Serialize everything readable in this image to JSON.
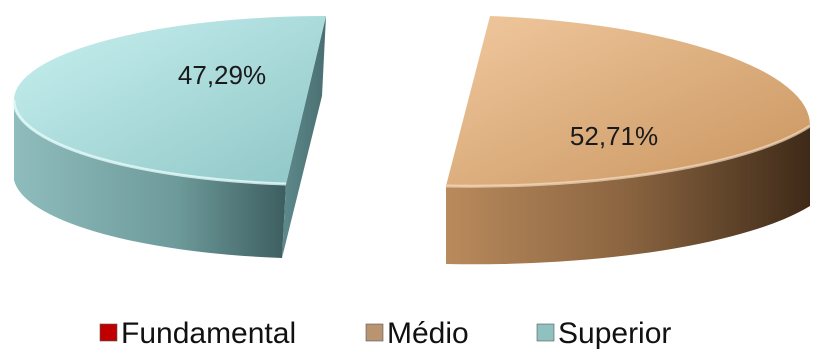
{
  "chart_data": {
    "type": "pie",
    "style": "3d-exploded",
    "slices": [
      {
        "name": "Fundamental",
        "value": 0.0,
        "color": "#c00000"
      },
      {
        "name": "Médio",
        "value": 52.71,
        "label": "52,71%",
        "color": "#d9ab80"
      },
      {
        "name": "Superior",
        "value": 47.29,
        "label": "47,29%",
        "color": "#a9d9d9"
      }
    ],
    "legend": {
      "placement": "bottom",
      "items": [
        {
          "name": "Fundamental",
          "color": "#c00000"
        },
        {
          "name": "Médio",
          "color": "#b99470"
        },
        {
          "name": "Superior",
          "color": "#8fc1c1"
        }
      ]
    }
  }
}
